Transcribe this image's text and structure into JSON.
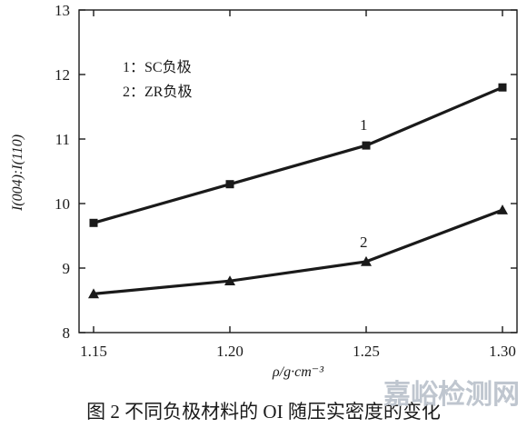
{
  "chart_data": {
    "type": "line",
    "x": [
      1.15,
      1.2,
      1.25,
      1.3
    ],
    "x_tick_labels": [
      "1.15",
      "1.20",
      "1.25",
      "1.30"
    ],
    "xlim": [
      1.15,
      1.3
    ],
    "y_ticks": [
      8,
      9,
      10,
      11,
      12,
      13
    ],
    "y_tick_labels": [
      "8",
      "9",
      "10",
      "11",
      "12",
      "13"
    ],
    "ylim": [
      8,
      13
    ],
    "xlabel": "ρ/g·cm⁻³",
    "ylabel": "I(004):I(110)",
    "series": [
      {
        "name": "1",
        "marker": "square",
        "values": [
          9.7,
          10.3,
          10.9,
          11.8
        ]
      },
      {
        "name": "2",
        "marker": "triangle",
        "values": [
          8.6,
          8.8,
          9.1,
          9.9
        ]
      }
    ],
    "legend": {
      "placement": "top-left",
      "entries": [
        "1：SC负极",
        "2：ZR负极"
      ]
    },
    "line_color": "#1a1a1a",
    "grid": false
  },
  "caption": "图 2   不同负极材料的 OI 随压实密度的变化",
  "watermark": "嘉峪检测网"
}
